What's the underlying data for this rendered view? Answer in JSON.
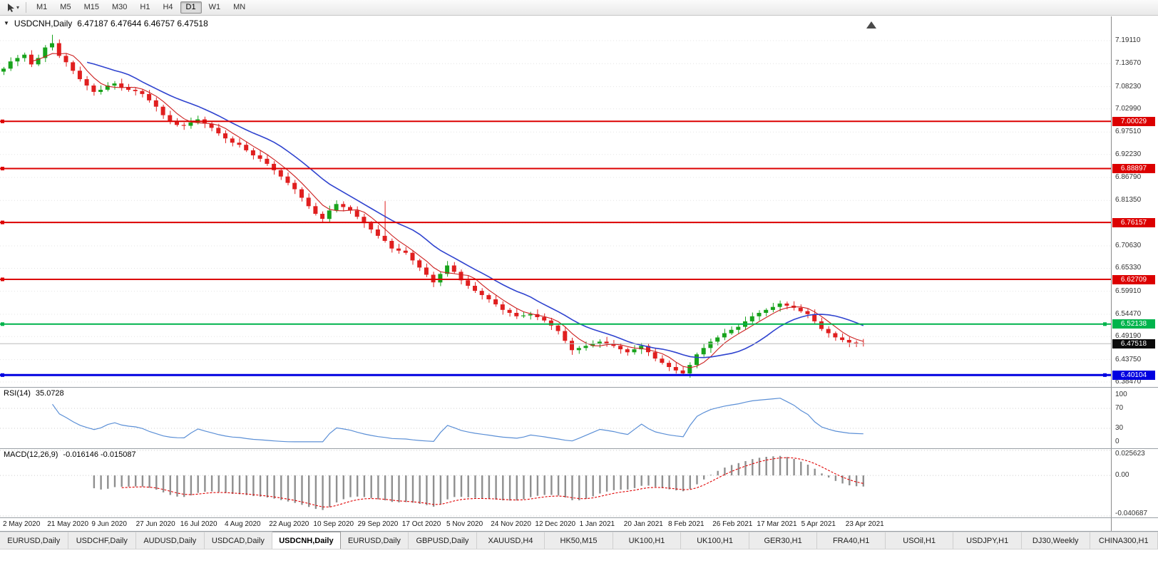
{
  "toolbar": {
    "timeframes": [
      {
        "label": "M1",
        "active": false
      },
      {
        "label": "M5",
        "active": false
      },
      {
        "label": "M15",
        "active": false
      },
      {
        "label": "M30",
        "active": false
      },
      {
        "label": "H1",
        "active": false
      },
      {
        "label": "H4",
        "active": false
      },
      {
        "label": "D1",
        "active": true
      },
      {
        "label": "W1",
        "active": false
      },
      {
        "label": "MN",
        "active": false
      }
    ]
  },
  "chart_header": {
    "symbol_period": "USDCNH,Daily",
    "ohlc": "6.47187 6.47644 6.46757 6.47518"
  },
  "price_axis_ticks": [
    "7.19110",
    "7.13670",
    "7.08230",
    "7.02990",
    "6.97510",
    "6.92230",
    "6.86790",
    "6.81350",
    "6.76060",
    "6.70630",
    "6.65330",
    "6.59910",
    "6.54470",
    "6.49190",
    "6.43750",
    "6.38470"
  ],
  "levels": [
    {
      "label": "7.00029",
      "value": 7.00029,
      "color": "#dc0000",
      "width": 2,
      "kind": "resistance"
    },
    {
      "label": "6.88897",
      "value": 6.88897,
      "color": "#dc0000",
      "width": 2,
      "kind": "resistance"
    },
    {
      "label": "6.76157",
      "value": 6.76157,
      "color": "#dc0000",
      "width": 2,
      "kind": "resistance"
    },
    {
      "label": "6.62709",
      "value": 6.62709,
      "color": "#dc0000",
      "width": 2,
      "kind": "resistance"
    },
    {
      "label": "6.52138",
      "value": 6.52138,
      "color": "#00b44c",
      "width": 2,
      "kind": "support"
    },
    {
      "label": "6.47518",
      "value": 6.47518,
      "color": "#0a0a0a",
      "width": 1,
      "kind": "current-price",
      "line_color": "#bcbcbc"
    },
    {
      "label": "6.40104",
      "value": 6.40104,
      "color": "#0000e0",
      "width": 3,
      "kind": "support"
    }
  ],
  "rsi_panel": {
    "name": "RSI(14)",
    "value": "35.0728",
    "axis_ticks": [
      "100",
      "70",
      "30",
      "0"
    ],
    "guide_levels": [
      70,
      30
    ]
  },
  "macd_panel": {
    "name": "MACD(12,26,9)",
    "values": "-0.016146 -0.015087",
    "axis_ticks": [
      "0.025623",
      "0.00",
      "-0.040687"
    ]
  },
  "date_axis": [
    "2 May 2020",
    "21 May 2020",
    "9 Jun 2020",
    "27 Jun 2020",
    "16 Jul 2020",
    "4 Aug 2020",
    "22 Aug 2020",
    "10 Sep 2020",
    "29 Sep 2020",
    "17 Oct 2020",
    "5 Nov 2020",
    "24 Nov 2020",
    "12 Dec 2020",
    "1 Jan 2021",
    "20 Jan 2021",
    "8 Feb 2021",
    "26 Feb 2021",
    "17 Mar 2021",
    "5 Apr 2021",
    "23 Apr 2021"
  ],
  "tabs": [
    {
      "label": "EURUSD,Daily",
      "active": false
    },
    {
      "label": "USDCHF,Daily",
      "active": false
    },
    {
      "label": "AUDUSD,Daily",
      "active": false
    },
    {
      "label": "USDCAD,Daily",
      "active": false
    },
    {
      "label": "USDCNH,Daily",
      "active": true
    },
    {
      "label": "EURUSD,Daily",
      "active": false
    },
    {
      "label": "GBPUSD,Daily",
      "active": false
    },
    {
      "label": "XAUUSD,H4",
      "active": false
    },
    {
      "label": "HK50,M15",
      "active": false
    },
    {
      "label": "UK100,H1",
      "active": false
    },
    {
      "label": "UK100,H1",
      "active": false
    },
    {
      "label": "GER30,H1",
      "active": false
    },
    {
      "label": "FRA40,H1",
      "active": false
    },
    {
      "label": "USOil,H1",
      "active": false
    },
    {
      "label": "USDJPY,H1",
      "active": false
    },
    {
      "label": "DJ30,Weekly",
      "active": false
    },
    {
      "label": "CHINA300,H1",
      "active": false
    }
  ],
  "chart_data": {
    "type": "candlestick",
    "symbol": "USDCNH",
    "period": "Daily",
    "visible_range": {
      "start": "2 May 2020",
      "end": "23 Apr 2021"
    },
    "price_axis_range": [
      6.3847,
      7.1911
    ],
    "horizontal_levels": [
      7.00029,
      6.88897,
      6.76157,
      6.62709,
      6.52138,
      6.47518,
      6.40104
    ],
    "last_quote": {
      "open": "6.47187",
      "high": "6.47644",
      "low": "6.46757",
      "close": "6.47518"
    },
    "rsi_current": 35.0728,
    "macd_current": [
      -0.016146,
      -0.015087
    ],
    "first_open": 7.118,
    "closes_downsampled": [
      7.125,
      7.142,
      7.15,
      7.158,
      7.135,
      7.15,
      7.175,
      7.185,
      7.155,
      7.14,
      7.12,
      7.1,
      7.085,
      7.07,
      7.075,
      7.085,
      7.09,
      7.08,
      7.075,
      7.072,
      7.065,
      7.05,
      7.035,
      7.015,
      7.0,
      6.992,
      6.99,
      6.998,
      7.005,
      6.995,
      6.985,
      6.972,
      6.96,
      6.95,
      6.945,
      6.932,
      6.92,
      6.912,
      6.9,
      6.885,
      6.87,
      6.855,
      6.84,
      6.82,
      6.8,
      6.782,
      6.77,
      6.79,
      6.805,
      6.798,
      6.79,
      6.775,
      6.76,
      6.745,
      6.73,
      6.718,
      6.7,
      6.695,
      6.69,
      6.672,
      6.655,
      6.638,
      6.62,
      6.64,
      6.66,
      6.645,
      6.625,
      6.612,
      6.6,
      6.59,
      6.58,
      6.568,
      6.555,
      6.548,
      6.54,
      6.542,
      6.545,
      6.538,
      6.53,
      6.518,
      6.505,
      6.482,
      6.46,
      6.465,
      6.47,
      6.475,
      6.48,
      6.475,
      6.47,
      6.462,
      6.455,
      6.462,
      6.47,
      6.455,
      6.44,
      6.43,
      6.42,
      6.412,
      6.405,
      6.425,
      6.45,
      6.465,
      6.48,
      6.49,
      6.5,
      6.508,
      6.515,
      6.528,
      6.54,
      6.548,
      6.555,
      6.562,
      6.57,
      6.565,
      6.56,
      6.552,
      6.545,
      6.528,
      6.51,
      6.5,
      6.49,
      6.484,
      6.478,
      6.476,
      6.475
    ],
    "extremes": {
      "high": {
        "index": 7,
        "price": 7.205
      },
      "spike": {
        "index": 55,
        "price": 6.812
      },
      "low": {
        "index": 98,
        "price": 6.401
      }
    },
    "overlays": [
      {
        "name": "MA-fast",
        "color": "#cc1f1f"
      },
      {
        "name": "MA-slow",
        "color": "#2f43cf"
      }
    ]
  }
}
